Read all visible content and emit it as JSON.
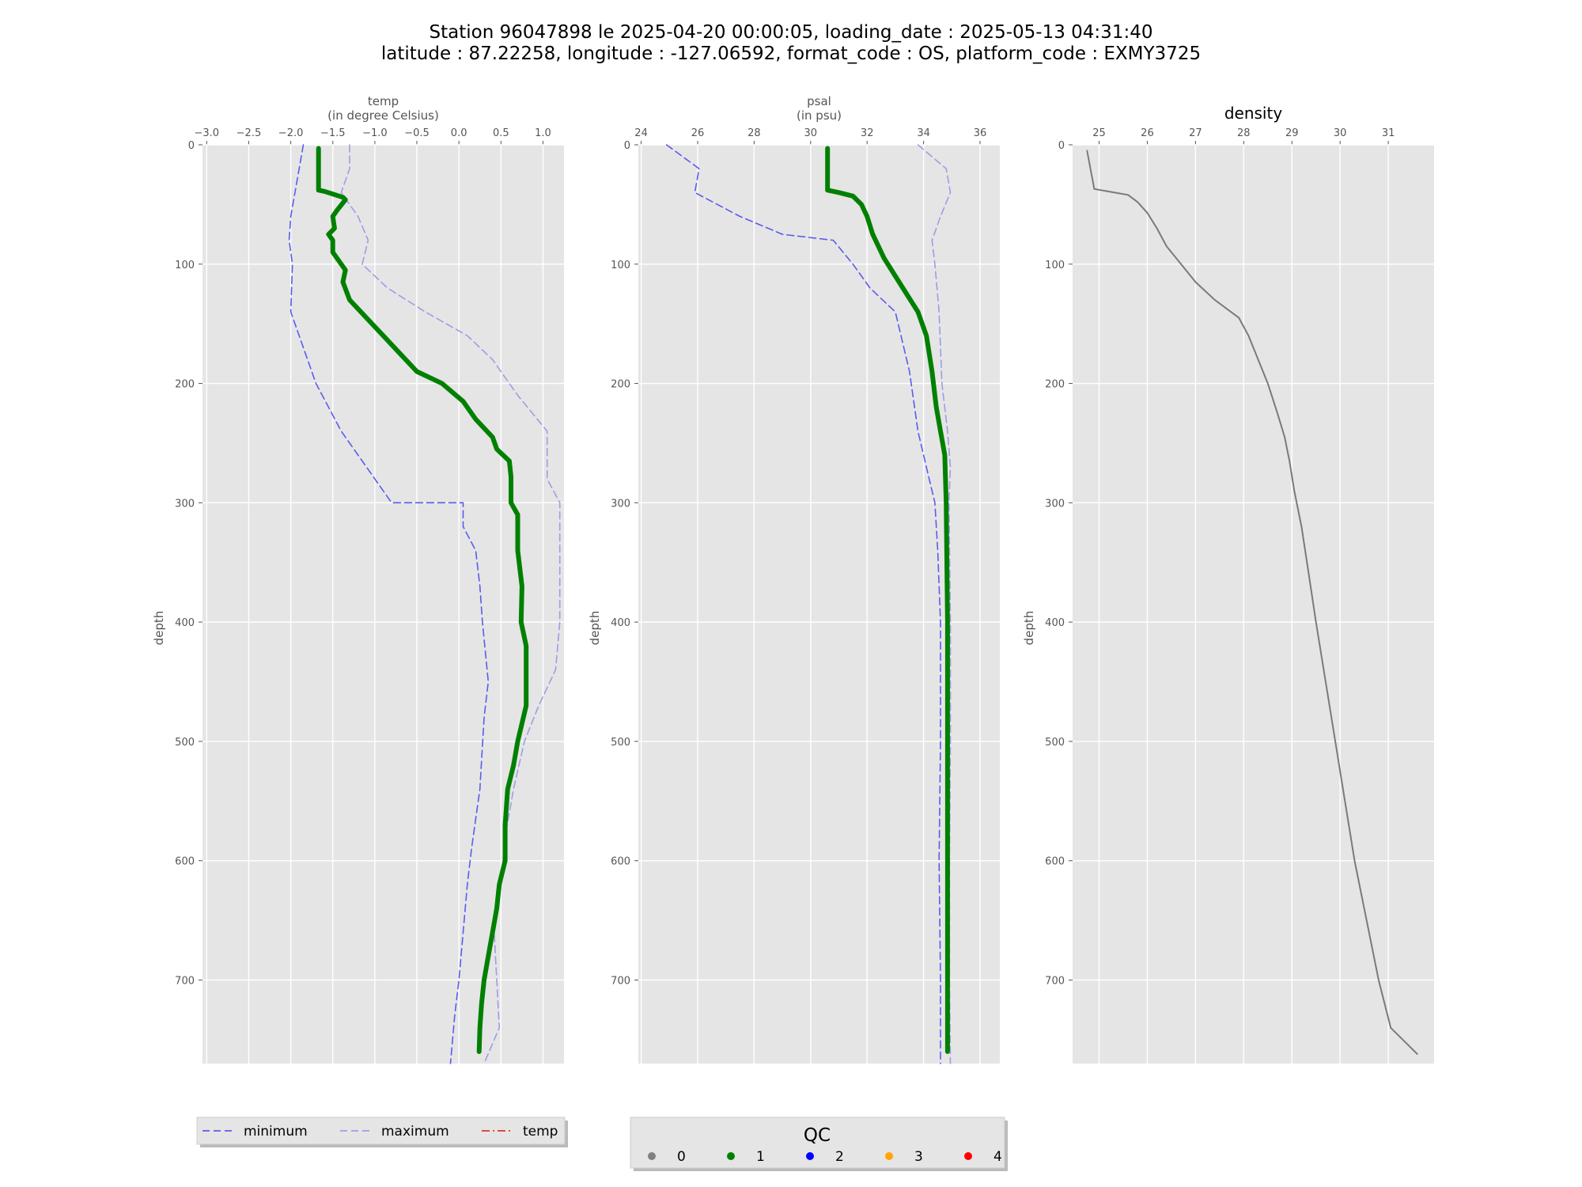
{
  "figure": {
    "title_line1": "Station 96047898 le 2025-04-20 00:00:05, loading_date : 2025-05-13 04:31:40",
    "title_line2": "latitude : 87.22258, longitude : -127.06592, format_code : OS, platform_code : EXMY3725"
  },
  "chart_data": [
    {
      "type": "line",
      "id": "temp",
      "title_lines": [
        "temp",
        "(in degree Celsius)"
      ],
      "ylabel": "depth",
      "xlim": [
        -3.05,
        1.25
      ],
      "ylim": [
        0,
        770
      ],
      "y_inverted": true,
      "x_ticks": [
        "−3.0",
        "−2.5",
        "−2.0",
        "−1.5",
        "−1.0",
        "−0.5",
        "0.0",
        "0.5",
        "1.0"
      ],
      "x_tick_values": [
        -3.0,
        -2.5,
        -2.0,
        -1.5,
        -1.0,
        -0.5,
        0.0,
        0.5,
        1.0
      ],
      "y_ticks": [
        0,
        100,
        200,
        300,
        400,
        500,
        600,
        700
      ],
      "grid": true,
      "series": [
        {
          "name": "minimum",
          "style": "dashed",
          "color": "#5b5bf0",
          "points": [
            [
              -1.85,
              0
            ],
            [
              -1.9,
              20
            ],
            [
              -2.0,
              60
            ],
            [
              -2.02,
              80
            ],
            [
              -1.98,
              100
            ],
            [
              -2.0,
              140
            ],
            [
              -1.85,
              170
            ],
            [
              -1.7,
              200
            ],
            [
              -1.4,
              240
            ],
            [
              -1.2,
              260
            ],
            [
              -0.9,
              290
            ],
            [
              -0.8,
              300
            ],
            [
              0.05,
              300
            ],
            [
              0.05,
              320
            ],
            [
              0.2,
              340
            ],
            [
              0.25,
              370
            ],
            [
              0.28,
              400
            ],
            [
              0.35,
              450
            ],
            [
              0.3,
              480
            ],
            [
              0.25,
              540
            ],
            [
              0.15,
              590
            ],
            [
              0.1,
              620
            ],
            [
              0.05,
              660
            ],
            [
              0.0,
              700
            ],
            [
              -0.05,
              730
            ],
            [
              -0.1,
              770
            ]
          ]
        },
        {
          "name": "maximum",
          "style": "dashed",
          "color": "#9d9de6",
          "points": [
            [
              -1.3,
              0
            ],
            [
              -1.3,
              20
            ],
            [
              -1.4,
              40
            ],
            [
              -1.2,
              60
            ],
            [
              -1.08,
              80
            ],
            [
              -1.15,
              100
            ],
            [
              -0.85,
              120
            ],
            [
              -0.4,
              140
            ],
            [
              0.1,
              160
            ],
            [
              0.4,
              180
            ],
            [
              0.7,
              210
            ],
            [
              1.05,
              240
            ],
            [
              1.05,
              280
            ],
            [
              1.2,
              300
            ],
            [
              1.2,
              350
            ],
            [
              1.2,
              400
            ],
            [
              1.15,
              440
            ],
            [
              0.95,
              470
            ],
            [
              0.78,
              500
            ],
            [
              0.65,
              540
            ],
            [
              0.55,
              580
            ],
            [
              0.5,
              620
            ],
            [
              0.42,
              660
            ],
            [
              0.45,
              700
            ],
            [
              0.48,
              740
            ],
            [
              0.3,
              770
            ]
          ]
        },
        {
          "name": "temp",
          "style": "solid",
          "color": "#008000",
          "width": 6,
          "qc": 1,
          "points": [
            [
              -1.67,
              3
            ],
            [
              -1.67,
              38
            ],
            [
              -1.6,
              39
            ],
            [
              -1.38,
              44
            ],
            [
              -1.35,
              46
            ],
            [
              -1.45,
              55
            ],
            [
              -1.5,
              60
            ],
            [
              -1.48,
              70
            ],
            [
              -1.55,
              75
            ],
            [
              -1.5,
              80
            ],
            [
              -1.5,
              90
            ],
            [
              -1.35,
              105
            ],
            [
              -1.38,
              115
            ],
            [
              -1.3,
              130
            ],
            [
              -1.1,
              145
            ],
            [
              -0.9,
              160
            ],
            [
              -0.7,
              175
            ],
            [
              -0.5,
              190
            ],
            [
              -0.2,
              200
            ],
            [
              0.05,
              215
            ],
            [
              0.2,
              230
            ],
            [
              0.4,
              245
            ],
            [
              0.45,
              255
            ],
            [
              0.6,
              265
            ],
            [
              0.62,
              278
            ],
            [
              0.62,
              300
            ],
            [
              0.7,
              310
            ],
            [
              0.7,
              340
            ],
            [
              0.75,
              370
            ],
            [
              0.74,
              400
            ],
            [
              0.8,
              420
            ],
            [
              0.8,
              450
            ],
            [
              0.8,
              470
            ],
            [
              0.7,
              500
            ],
            [
              0.65,
              520
            ],
            [
              0.58,
              540
            ],
            [
              0.55,
              570
            ],
            [
              0.55,
              600
            ],
            [
              0.48,
              620
            ],
            [
              0.45,
              640
            ],
            [
              0.4,
              660
            ],
            [
              0.35,
              680
            ],
            [
              0.3,
              700
            ],
            [
              0.27,
              720
            ],
            [
              0.25,
              740
            ],
            [
              0.24,
              760
            ]
          ]
        }
      ]
    },
    {
      "type": "line",
      "id": "psal",
      "title_lines": [
        "psal",
        "(in psu)"
      ],
      "ylabel": "depth",
      "xlim": [
        23.9,
        36.7
      ],
      "ylim": [
        0,
        770
      ],
      "y_inverted": true,
      "x_ticks": [
        "24",
        "26",
        "28",
        "30",
        "32",
        "34",
        "36"
      ],
      "x_tick_values": [
        24,
        26,
        28,
        30,
        32,
        34,
        36
      ],
      "y_ticks": [
        0,
        100,
        200,
        300,
        400,
        500,
        600,
        700
      ],
      "grid": true,
      "series": [
        {
          "name": "minimum",
          "style": "dashed",
          "color": "#5b5bf0",
          "points": [
            [
              24.9,
              0
            ],
            [
              26.05,
              20
            ],
            [
              25.9,
              40
            ],
            [
              27.5,
              60
            ],
            [
              29.0,
              75
            ],
            [
              30.8,
              80
            ],
            [
              31.5,
              100
            ],
            [
              32.1,
              120
            ],
            [
              33.0,
              140
            ],
            [
              33.5,
              190
            ],
            [
              33.8,
              240
            ],
            [
              34.2,
              280
            ],
            [
              34.4,
              300
            ],
            [
              34.5,
              340
            ],
            [
              34.6,
              400
            ],
            [
              34.6,
              500
            ],
            [
              34.55,
              600
            ],
            [
              34.6,
              700
            ],
            [
              34.6,
              770
            ]
          ]
        },
        {
          "name": "maximum",
          "style": "dashed",
          "color": "#9d9de6",
          "points": [
            [
              33.8,
              0
            ],
            [
              34.8,
              20
            ],
            [
              34.95,
              40
            ],
            [
              34.6,
              60
            ],
            [
              34.3,
              80
            ],
            [
              34.4,
              100
            ],
            [
              34.55,
              140
            ],
            [
              34.65,
              200
            ],
            [
              34.85,
              240
            ],
            [
              34.95,
              270
            ],
            [
              34.9,
              300
            ],
            [
              34.95,
              400
            ],
            [
              34.95,
              500
            ],
            [
              34.92,
              600
            ],
            [
              34.92,
              700
            ],
            [
              34.95,
              770
            ]
          ]
        },
        {
          "name": "psal",
          "style": "solid",
          "color": "#008000",
          "width": 6,
          "qc": 1,
          "points": [
            [
              30.6,
              3
            ],
            [
              30.6,
              38
            ],
            [
              31.0,
              40
            ],
            [
              31.5,
              43
            ],
            [
              31.8,
              50
            ],
            [
              32.0,
              60
            ],
            [
              32.2,
              75
            ],
            [
              32.4,
              85
            ],
            [
              32.6,
              95
            ],
            [
              33.0,
              110
            ],
            [
              33.4,
              125
            ],
            [
              33.8,
              140
            ],
            [
              34.1,
              160
            ],
            [
              34.3,
              190
            ],
            [
              34.45,
              220
            ],
            [
              34.6,
              240
            ],
            [
              34.75,
              260
            ],
            [
              34.8,
              300
            ],
            [
              34.85,
              400
            ],
            [
              34.85,
              500
            ],
            [
              34.85,
              600
            ],
            [
              34.85,
              700
            ],
            [
              34.85,
              760
            ]
          ]
        }
      ]
    },
    {
      "type": "line",
      "id": "density",
      "title": "density",
      "ylabel": "depth",
      "xlim": [
        24.45,
        31.95
      ],
      "ylim": [
        0,
        770
      ],
      "y_inverted": true,
      "x_ticks": [
        "25",
        "26",
        "27",
        "28",
        "29",
        "30",
        "31"
      ],
      "x_tick_values": [
        25,
        26,
        27,
        28,
        29,
        30,
        31
      ],
      "y_ticks": [
        0,
        100,
        200,
        300,
        400,
        500,
        600,
        700
      ],
      "grid": true,
      "series": [
        {
          "name": "density",
          "style": "solid",
          "color": "#7a7a7a",
          "width": 2,
          "points": [
            [
              24.75,
              5
            ],
            [
              24.9,
              37
            ],
            [
              25.6,
              42
            ],
            [
              25.8,
              48
            ],
            [
              26.0,
              57
            ],
            [
              26.2,
              70
            ],
            [
              26.4,
              85
            ],
            [
              26.7,
              100
            ],
            [
              27.0,
              115
            ],
            [
              27.4,
              130
            ],
            [
              27.9,
              145
            ],
            [
              28.1,
              160
            ],
            [
              28.3,
              180
            ],
            [
              28.5,
              200
            ],
            [
              28.7,
              225
            ],
            [
              28.85,
              245
            ],
            [
              28.95,
              265
            ],
            [
              29.05,
              290
            ],
            [
              29.2,
              320
            ],
            [
              29.35,
              360
            ],
            [
              29.5,
              400
            ],
            [
              29.7,
              450
            ],
            [
              29.9,
              500
            ],
            [
              30.1,
              550
            ],
            [
              30.3,
              600
            ],
            [
              30.55,
              650
            ],
            [
              30.8,
              700
            ],
            [
              31.05,
              740
            ],
            [
              31.6,
              762
            ]
          ]
        }
      ]
    }
  ],
  "legend_lines": {
    "items": [
      {
        "label": "minimum",
        "style": "dashed",
        "color": "#5b5bf0"
      },
      {
        "label": "maximum",
        "style": "dashed",
        "color": "#9d9de6"
      },
      {
        "label": "temp",
        "style": "dashdot",
        "color": "#e8302a"
      }
    ]
  },
  "legend_qc": {
    "title": "QC",
    "items": [
      {
        "label": "0",
        "color": "#808080"
      },
      {
        "label": "1",
        "color": "#008000"
      },
      {
        "label": "2",
        "color": "#0000ff"
      },
      {
        "label": "3",
        "color": "#ffa500"
      },
      {
        "label": "4",
        "color": "#ff0000"
      }
    ]
  }
}
